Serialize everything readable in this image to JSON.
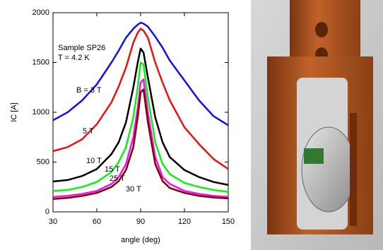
{
  "chart_data": {
    "type": "line",
    "x_label": "angle (deg)",
    "y_label": "IC [A]",
    "annotations": [
      "Sample SP26",
      "T = 4.2 K"
    ],
    "x": [
      30,
      40,
      50,
      60,
      70,
      75,
      80,
      85,
      88,
      90,
      92,
      95,
      100,
      105,
      110,
      120,
      130,
      140,
      150
    ],
    "series": [
      {
        "name": "B = 3 T",
        "color": "#1010ee",
        "values": [
          920,
          1000,
          1120,
          1280,
          1500,
          1620,
          1750,
          1840,
          1880,
          1900,
          1890,
          1860,
          1760,
          1650,
          1520,
          1320,
          1120,
          960,
          870
        ]
      },
      {
        "name": "5 T",
        "color": "#ee1010",
        "values": [
          610,
          650,
          730,
          880,
          1100,
          1260,
          1450,
          1700,
          1800,
          1840,
          1820,
          1750,
          1500,
          1300,
          1120,
          850,
          680,
          530,
          430
        ]
      },
      {
        "name": "10 T",
        "color": "#000000",
        "values": [
          305,
          320,
          360,
          430,
          580,
          700,
          900,
          1250,
          1500,
          1640,
          1600,
          1350,
          950,
          700,
          550,
          420,
          350,
          300,
          270
        ]
      },
      {
        "name": "15 T",
        "color": "#10ee10",
        "values": [
          210,
          220,
          250,
          300,
          400,
          500,
          650,
          950,
          1250,
          1500,
          1480,
          1150,
          700,
          480,
          380,
          290,
          250,
          220,
          200
        ]
      },
      {
        "name": "25 T",
        "color": "#ee10ee",
        "values": [
          150,
          160,
          180,
          210,
          280,
          350,
          480,
          750,
          1050,
          1300,
          1330,
          1000,
          550,
          350,
          280,
          210,
          180,
          160,
          150
        ]
      },
      {
        "name": "30 T",
        "color": "#800000",
        "values": [
          130,
          140,
          160,
          190,
          250,
          310,
          420,
          650,
          950,
          1200,
          1230,
          900,
          480,
          310,
          240,
          190,
          160,
          145,
          135
        ]
      }
    ],
    "xlim": [
      30,
      150
    ],
    "xticks": [
      30,
      60,
      90,
      120,
      150
    ],
    "ylim": [
      0,
      2000
    ],
    "yticks": [
      0,
      500,
      1000,
      1500,
      2000
    ]
  }
}
